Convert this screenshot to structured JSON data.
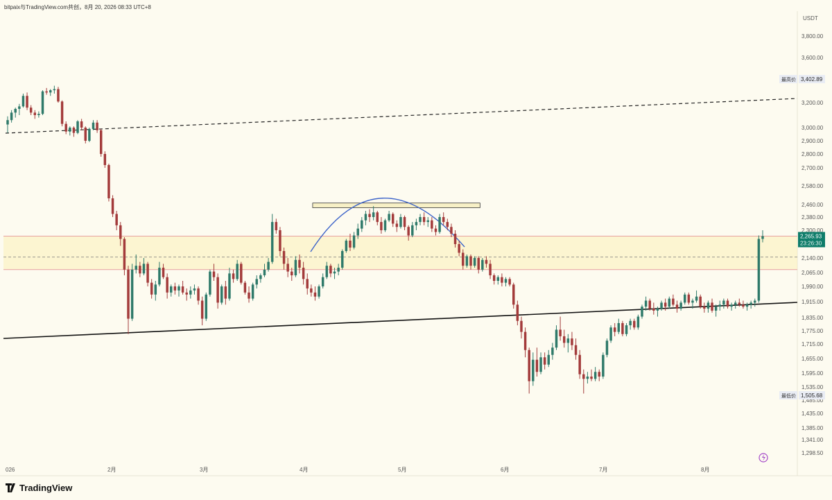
{
  "header": {
    "caption": "bitpaix与TradingView.com共创，8月 20, 2026 08:33 UTC+8"
  },
  "footer": {
    "brand": "TradingView"
  },
  "colors": {
    "background": "#fdfbf0",
    "up": "#2f7a6a",
    "down": "#a33b3b",
    "zone_fill": "#fbf1b8",
    "zone_border": "#e7a0a0",
    "arc": "#3c63c9",
    "price_badge": "#0f7d6a"
  },
  "chart_data": {
    "type": "candlestick",
    "currency": "USDT",
    "price_axis_ticks": [
      "3,800.00",
      "3,600.00",
      "3,200.00",
      "3,000.00",
      "2,900.00",
      "2,800.00",
      "2,700.00",
      "2,580.00",
      "2,460.00",
      "2,380.00",
      "2,300.00",
      "2,140.00",
      "2,065.00",
      "1,990.00",
      "1,915.00",
      "1,835.00",
      "1,775.00",
      "1,715.00",
      "1,655.00",
      "1,595.00",
      "1,535.00",
      "1,485.00",
      "1,435.00",
      "1,385.00",
      "1,341.00",
      "1,298.50"
    ],
    "time_axis_ticks": [
      "026",
      "2月",
      "3月",
      "4月",
      "5月",
      "6月",
      "7月",
      "8月"
    ],
    "highest_label": "最高价",
    "highest_value": "3,402.89",
    "lowest_label": "最低价",
    "lowest_value": "1,505.68",
    "last_price": "2,265.93",
    "countdown": "23:26:30",
    "support_zone": {
      "top": 2265.93,
      "bottom": 2080,
      "mid": 2145
    },
    "resistance_box": {
      "top": 2470,
      "bottom": 2440,
      "from": "2026-04-05",
      "to": "2026-05-26"
    },
    "candles": [
      {
        "o": 3025,
        "h": 3090,
        "l": 2960,
        "c": 3060
      },
      {
        "o": 3060,
        "h": 3140,
        "l": 3040,
        "c": 3120
      },
      {
        "o": 3120,
        "h": 3160,
        "l": 3080,
        "c": 3150
      },
      {
        "o": 3150,
        "h": 3190,
        "l": 3100,
        "c": 3170
      },
      {
        "o": 3170,
        "h": 3280,
        "l": 3160,
        "c": 3260
      },
      {
        "o": 3260,
        "h": 3290,
        "l": 3140,
        "c": 3160
      },
      {
        "o": 3160,
        "h": 3180,
        "l": 3100,
        "c": 3120
      },
      {
        "o": 3120,
        "h": 3140,
        "l": 3070,
        "c": 3100
      },
      {
        "o": 3100,
        "h": 3130,
        "l": 3080,
        "c": 3110
      },
      {
        "o": 3110,
        "h": 3310,
        "l": 3100,
        "c": 3300
      },
      {
        "o": 3300,
        "h": 3330,
        "l": 3270,
        "c": 3290
      },
      {
        "o": 3290,
        "h": 3320,
        "l": 3260,
        "c": 3310
      },
      {
        "o": 3310,
        "h": 3350,
        "l": 3280,
        "c": 3320
      },
      {
        "o": 3320,
        "h": 3340,
        "l": 3200,
        "c": 3210
      },
      {
        "o": 3210,
        "h": 3220,
        "l": 3010,
        "c": 3030
      },
      {
        "o": 3030,
        "h": 3050,
        "l": 2950,
        "c": 2970
      },
      {
        "o": 2970,
        "h": 3010,
        "l": 2940,
        "c": 3000
      },
      {
        "o": 3000,
        "h": 3010,
        "l": 2930,
        "c": 2960
      },
      {
        "o": 2960,
        "h": 3060,
        "l": 2950,
        "c": 3050
      },
      {
        "o": 3050,
        "h": 3070,
        "l": 2980,
        "c": 3000
      },
      {
        "o": 3000,
        "h": 3010,
        "l": 2880,
        "c": 2900
      },
      {
        "o": 2900,
        "h": 3000,
        "l": 2890,
        "c": 2990
      },
      {
        "o": 2990,
        "h": 3060,
        "l": 2980,
        "c": 3040
      },
      {
        "o": 3040,
        "h": 3060,
        "l": 2960,
        "c": 2980
      },
      {
        "o": 2980,
        "h": 2990,
        "l": 2780,
        "c": 2800
      },
      {
        "o": 2800,
        "h": 2820,
        "l": 2700,
        "c": 2720
      },
      {
        "o": 2720,
        "h": 2730,
        "l": 2480,
        "c": 2500
      },
      {
        "o": 2500,
        "h": 2520,
        "l": 2380,
        "c": 2400
      },
      {
        "o": 2400,
        "h": 2420,
        "l": 2300,
        "c": 2330
      },
      {
        "o": 2330,
        "h": 2350,
        "l": 2210,
        "c": 2250
      },
      {
        "o": 2250,
        "h": 2260,
        "l": 2050,
        "c": 2080
      },
      {
        "o": 2080,
        "h": 2100,
        "l": 1760,
        "c": 1830
      },
      {
        "o": 1830,
        "h": 2110,
        "l": 1820,
        "c": 2080
      },
      {
        "o": 2080,
        "h": 2160,
        "l": 2060,
        "c": 2100
      },
      {
        "o": 2100,
        "h": 2120,
        "l": 2040,
        "c": 2060
      },
      {
        "o": 2060,
        "h": 2140,
        "l": 2050,
        "c": 2110
      },
      {
        "o": 2110,
        "h": 2120,
        "l": 1990,
        "c": 2010
      },
      {
        "o": 2010,
        "h": 2030,
        "l": 1930,
        "c": 1950
      },
      {
        "o": 1950,
        "h": 2020,
        "l": 1920,
        "c": 2000
      },
      {
        "o": 2000,
        "h": 2120,
        "l": 1990,
        "c": 2090
      },
      {
        "o": 2090,
        "h": 2110,
        "l": 2030,
        "c": 2040
      },
      {
        "o": 2040,
        "h": 2060,
        "l": 1930,
        "c": 1960
      },
      {
        "o": 1960,
        "h": 2000,
        "l": 1940,
        "c": 1990
      },
      {
        "o": 1990,
        "h": 2010,
        "l": 1950,
        "c": 1970
      },
      {
        "o": 1970,
        "h": 2000,
        "l": 1940,
        "c": 1990
      },
      {
        "o": 1990,
        "h": 2020,
        "l": 1950,
        "c": 1960
      },
      {
        "o": 1960,
        "h": 1980,
        "l": 1920,
        "c": 1950
      },
      {
        "o": 1950,
        "h": 1990,
        "l": 1930,
        "c": 1970
      },
      {
        "o": 1970,
        "h": 2000,
        "l": 1950,
        "c": 1980
      },
      {
        "o": 1980,
        "h": 1990,
        "l": 1900,
        "c": 1920
      },
      {
        "o": 1920,
        "h": 1940,
        "l": 1800,
        "c": 1830
      },
      {
        "o": 1830,
        "h": 1960,
        "l": 1820,
        "c": 1950
      },
      {
        "o": 1950,
        "h": 2080,
        "l": 1940,
        "c": 2070
      },
      {
        "o": 2070,
        "h": 2110,
        "l": 2020,
        "c": 2040
      },
      {
        "o": 2040,
        "h": 2060,
        "l": 1880,
        "c": 1910
      },
      {
        "o": 1910,
        "h": 2000,
        "l": 1900,
        "c": 1990
      },
      {
        "o": 1990,
        "h": 2020,
        "l": 1900,
        "c": 1930
      },
      {
        "o": 1930,
        "h": 2090,
        "l": 1920,
        "c": 2060
      },
      {
        "o": 2060,
        "h": 2080,
        "l": 2010,
        "c": 2030
      },
      {
        "o": 2030,
        "h": 2130,
        "l": 2020,
        "c": 2110
      },
      {
        "o": 2110,
        "h": 2120,
        "l": 2000,
        "c": 2010
      },
      {
        "o": 2010,
        "h": 2020,
        "l": 1950,
        "c": 1960
      },
      {
        "o": 1960,
        "h": 1990,
        "l": 1910,
        "c": 1930
      },
      {
        "o": 1930,
        "h": 2010,
        "l": 1920,
        "c": 2000
      },
      {
        "o": 2000,
        "h": 2050,
        "l": 1980,
        "c": 2030
      },
      {
        "o": 2030,
        "h": 2060,
        "l": 2010,
        "c": 2050
      },
      {
        "o": 2050,
        "h": 2110,
        "l": 2040,
        "c": 2080
      },
      {
        "o": 2080,
        "h": 2140,
        "l": 2070,
        "c": 2120
      },
      {
        "o": 2120,
        "h": 2400,
        "l": 2110,
        "c": 2350
      },
      {
        "o": 2350,
        "h": 2370,
        "l": 2280,
        "c": 2300
      },
      {
        "o": 2300,
        "h": 2320,
        "l": 2150,
        "c": 2180
      },
      {
        "o": 2180,
        "h": 2200,
        "l": 2080,
        "c": 2110
      },
      {
        "o": 2110,
        "h": 2140,
        "l": 2040,
        "c": 2070
      },
      {
        "o": 2070,
        "h": 2090,
        "l": 2020,
        "c": 2050
      },
      {
        "o": 2050,
        "h": 2150,
        "l": 2040,
        "c": 2130
      },
      {
        "o": 2130,
        "h": 2160,
        "l": 2060,
        "c": 2090
      },
      {
        "o": 2090,
        "h": 2120,
        "l": 2000,
        "c": 2030
      },
      {
        "o": 2030,
        "h": 2060,
        "l": 1950,
        "c": 1980
      },
      {
        "o": 1980,
        "h": 2000,
        "l": 1940,
        "c": 1960
      },
      {
        "o": 1960,
        "h": 1990,
        "l": 1920,
        "c": 1940
      },
      {
        "o": 1940,
        "h": 2000,
        "l": 1930,
        "c": 1990
      },
      {
        "o": 1990,
        "h": 2060,
        "l": 1980,
        "c": 2040
      },
      {
        "o": 2040,
        "h": 2120,
        "l": 2030,
        "c": 2100
      },
      {
        "o": 2100,
        "h": 2110,
        "l": 2040,
        "c": 2060
      },
      {
        "o": 2060,
        "h": 2090,
        "l": 2030,
        "c": 2070
      },
      {
        "o": 2070,
        "h": 2110,
        "l": 2050,
        "c": 2090
      },
      {
        "o": 2090,
        "h": 2190,
        "l": 2080,
        "c": 2180
      },
      {
        "o": 2180,
        "h": 2250,
        "l": 2170,
        "c": 2240
      },
      {
        "o": 2240,
        "h": 2280,
        "l": 2180,
        "c": 2200
      },
      {
        "o": 2200,
        "h": 2290,
        "l": 2190,
        "c": 2270
      },
      {
        "o": 2270,
        "h": 2340,
        "l": 2250,
        "c": 2310
      },
      {
        "o": 2310,
        "h": 2380,
        "l": 2290,
        "c": 2360
      },
      {
        "o": 2360,
        "h": 2420,
        "l": 2330,
        "c": 2400
      },
      {
        "o": 2400,
        "h": 2430,
        "l": 2350,
        "c": 2380
      },
      {
        "o": 2380,
        "h": 2450,
        "l": 2360,
        "c": 2410
      },
      {
        "o": 2410,
        "h": 2420,
        "l": 2330,
        "c": 2350
      },
      {
        "o": 2350,
        "h": 2380,
        "l": 2280,
        "c": 2300
      },
      {
        "o": 2300,
        "h": 2370,
        "l": 2290,
        "c": 2360
      },
      {
        "o": 2360,
        "h": 2420,
        "l": 2350,
        "c": 2400
      },
      {
        "o": 2400,
        "h": 2410,
        "l": 2320,
        "c": 2340
      },
      {
        "o": 2340,
        "h": 2360,
        "l": 2290,
        "c": 2320
      },
      {
        "o": 2320,
        "h": 2400,
        "l": 2310,
        "c": 2380
      },
      {
        "o": 2380,
        "h": 2390,
        "l": 2300,
        "c": 2320
      },
      {
        "o": 2320,
        "h": 2330,
        "l": 2240,
        "c": 2270
      },
      {
        "o": 2270,
        "h": 2350,
        "l": 2260,
        "c": 2330
      },
      {
        "o": 2330,
        "h": 2370,
        "l": 2300,
        "c": 2350
      },
      {
        "o": 2350,
        "h": 2400,
        "l": 2330,
        "c": 2380
      },
      {
        "o": 2380,
        "h": 2410,
        "l": 2330,
        "c": 2350
      },
      {
        "o": 2350,
        "h": 2380,
        "l": 2320,
        "c": 2360
      },
      {
        "o": 2360,
        "h": 2380,
        "l": 2290,
        "c": 2310
      },
      {
        "o": 2310,
        "h": 2330,
        "l": 2270,
        "c": 2290
      },
      {
        "o": 2290,
        "h": 2400,
        "l": 2280,
        "c": 2380
      },
      {
        "o": 2380,
        "h": 2410,
        "l": 2330,
        "c": 2350
      },
      {
        "o": 2350,
        "h": 2370,
        "l": 2300,
        "c": 2320
      },
      {
        "o": 2320,
        "h": 2340,
        "l": 2260,
        "c": 2280
      },
      {
        "o": 2280,
        "h": 2300,
        "l": 2200,
        "c": 2220
      },
      {
        "o": 2220,
        "h": 2240,
        "l": 2150,
        "c": 2170
      },
      {
        "o": 2170,
        "h": 2190,
        "l": 2080,
        "c": 2100
      },
      {
        "o": 2100,
        "h": 2160,
        "l": 2090,
        "c": 2150
      },
      {
        "o": 2150,
        "h": 2160,
        "l": 2080,
        "c": 2100
      },
      {
        "o": 2100,
        "h": 2150,
        "l": 2090,
        "c": 2140
      },
      {
        "o": 2140,
        "h": 2150,
        "l": 2060,
        "c": 2080
      },
      {
        "o": 2080,
        "h": 2140,
        "l": 2070,
        "c": 2130
      },
      {
        "o": 2130,
        "h": 2150,
        "l": 2090,
        "c": 2110
      },
      {
        "o": 2110,
        "h": 2130,
        "l": 2030,
        "c": 2050
      },
      {
        "o": 2050,
        "h": 2060,
        "l": 2000,
        "c": 2020
      },
      {
        "o": 2020,
        "h": 2050,
        "l": 2000,
        "c": 2040
      },
      {
        "o": 2040,
        "h": 2060,
        "l": 1990,
        "c": 2010
      },
      {
        "o": 2010,
        "h": 2040,
        "l": 1990,
        "c": 2030
      },
      {
        "o": 2030,
        "h": 2040,
        "l": 1990,
        "c": 2000
      },
      {
        "o": 2000,
        "h": 2010,
        "l": 1880,
        "c": 1900
      },
      {
        "o": 1900,
        "h": 1920,
        "l": 1800,
        "c": 1820
      },
      {
        "o": 1820,
        "h": 1840,
        "l": 1740,
        "c": 1770
      },
      {
        "o": 1770,
        "h": 1790,
        "l": 1660,
        "c": 1690
      },
      {
        "o": 1690,
        "h": 1700,
        "l": 1510,
        "c": 1560
      },
      {
        "o": 1560,
        "h": 1680,
        "l": 1540,
        "c": 1650
      },
      {
        "o": 1650,
        "h": 1700,
        "l": 1580,
        "c": 1600
      },
      {
        "o": 1600,
        "h": 1680,
        "l": 1590,
        "c": 1660
      },
      {
        "o": 1660,
        "h": 1680,
        "l": 1610,
        "c": 1630
      },
      {
        "o": 1630,
        "h": 1690,
        "l": 1620,
        "c": 1670
      },
      {
        "o": 1670,
        "h": 1720,
        "l": 1650,
        "c": 1700
      },
      {
        "o": 1700,
        "h": 1800,
        "l": 1690,
        "c": 1780
      },
      {
        "o": 1780,
        "h": 1840,
        "l": 1730,
        "c": 1750
      },
      {
        "o": 1750,
        "h": 1780,
        "l": 1700,
        "c": 1720
      },
      {
        "o": 1720,
        "h": 1760,
        "l": 1680,
        "c": 1740
      },
      {
        "o": 1740,
        "h": 1770,
        "l": 1690,
        "c": 1710
      },
      {
        "o": 1710,
        "h": 1740,
        "l": 1650,
        "c": 1670
      },
      {
        "o": 1670,
        "h": 1690,
        "l": 1570,
        "c": 1590
      },
      {
        "o": 1590,
        "h": 1610,
        "l": 1510,
        "c": 1570
      },
      {
        "o": 1570,
        "h": 1600,
        "l": 1550,
        "c": 1580
      },
      {
        "o": 1580,
        "h": 1610,
        "l": 1560,
        "c": 1570
      },
      {
        "o": 1570,
        "h": 1620,
        "l": 1560,
        "c": 1600
      },
      {
        "o": 1600,
        "h": 1610,
        "l": 1560,
        "c": 1580
      },
      {
        "o": 1580,
        "h": 1680,
        "l": 1570,
        "c": 1670
      },
      {
        "o": 1670,
        "h": 1740,
        "l": 1660,
        "c": 1730
      },
      {
        "o": 1730,
        "h": 1800,
        "l": 1720,
        "c": 1790
      },
      {
        "o": 1790,
        "h": 1810,
        "l": 1750,
        "c": 1770
      },
      {
        "o": 1770,
        "h": 1830,
        "l": 1760,
        "c": 1810
      },
      {
        "o": 1810,
        "h": 1820,
        "l": 1750,
        "c": 1760
      },
      {
        "o": 1760,
        "h": 1810,
        "l": 1750,
        "c": 1800
      },
      {
        "o": 1800,
        "h": 1830,
        "l": 1780,
        "c": 1820
      },
      {
        "o": 1820,
        "h": 1830,
        "l": 1780,
        "c": 1790
      },
      {
        "o": 1790,
        "h": 1850,
        "l": 1780,
        "c": 1840
      },
      {
        "o": 1840,
        "h": 1900,
        "l": 1830,
        "c": 1890
      },
      {
        "o": 1890,
        "h": 1940,
        "l": 1870,
        "c": 1920
      },
      {
        "o": 1920,
        "h": 1930,
        "l": 1870,
        "c": 1880
      },
      {
        "o": 1880,
        "h": 1910,
        "l": 1850,
        "c": 1870
      },
      {
        "o": 1870,
        "h": 1890,
        "l": 1840,
        "c": 1880
      },
      {
        "o": 1880,
        "h": 1920,
        "l": 1870,
        "c": 1910
      },
      {
        "o": 1910,
        "h": 1930,
        "l": 1870,
        "c": 1890
      },
      {
        "o": 1890,
        "h": 1940,
        "l": 1880,
        "c": 1930
      },
      {
        "o": 1930,
        "h": 1950,
        "l": 1890,
        "c": 1900
      },
      {
        "o": 1900,
        "h": 1920,
        "l": 1860,
        "c": 1880
      },
      {
        "o": 1880,
        "h": 1920,
        "l": 1870,
        "c": 1910
      },
      {
        "o": 1910,
        "h": 1960,
        "l": 1900,
        "c": 1950
      },
      {
        "o": 1950,
        "h": 1960,
        "l": 1900,
        "c": 1910
      },
      {
        "o": 1910,
        "h": 1930,
        "l": 1880,
        "c": 1920
      },
      {
        "o": 1920,
        "h": 1970,
        "l": 1910,
        "c": 1940
      },
      {
        "o": 1940,
        "h": 1950,
        "l": 1880,
        "c": 1890
      },
      {
        "o": 1890,
        "h": 1910,
        "l": 1860,
        "c": 1880
      },
      {
        "o": 1880,
        "h": 1920,
        "l": 1860,
        "c": 1910
      },
      {
        "o": 1910,
        "h": 1930,
        "l": 1860,
        "c": 1870
      },
      {
        "o": 1870,
        "h": 1900,
        "l": 1840,
        "c": 1890
      },
      {
        "o": 1890,
        "h": 1920,
        "l": 1870,
        "c": 1900
      },
      {
        "o": 1900,
        "h": 1930,
        "l": 1880,
        "c": 1920
      },
      {
        "o": 1920,
        "h": 1930,
        "l": 1880,
        "c": 1890
      },
      {
        "o": 1890,
        "h": 1910,
        "l": 1870,
        "c": 1900
      },
      {
        "o": 1900,
        "h": 1920,
        "l": 1880,
        "c": 1910
      },
      {
        "o": 1910,
        "h": 1930,
        "l": 1890,
        "c": 1900
      },
      {
        "o": 1900,
        "h": 1920,
        "l": 1880,
        "c": 1890
      },
      {
        "o": 1890,
        "h": 1910,
        "l": 1870,
        "c": 1900
      },
      {
        "o": 1900,
        "h": 1920,
        "l": 1880,
        "c": 1910
      },
      {
        "o": 1910,
        "h": 1930,
        "l": 1890,
        "c": 1920
      },
      {
        "o": 1920,
        "h": 2270,
        "l": 1910,
        "c": 2250
      },
      {
        "o": 2250,
        "h": 2300,
        "l": 2230,
        "c": 2265.93
      }
    ]
  }
}
